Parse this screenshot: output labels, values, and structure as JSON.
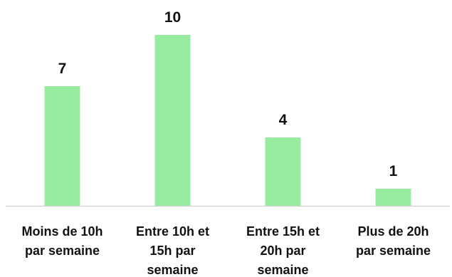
{
  "chart_data": {
    "type": "bar",
    "categories": [
      [
        "Moins de 10h",
        "par semaine"
      ],
      [
        "Entre 10h et",
        "15h par",
        "semaine"
      ],
      [
        "Entre 15h et",
        "20h par",
        "semaine"
      ],
      [
        "Plus de 20h",
        "par semaine"
      ]
    ],
    "values": [
      7,
      10,
      4,
      1
    ],
    "data_labels": [
      "7",
      "10",
      "4",
      "1"
    ],
    "ylim": [
      0,
      10
    ],
    "grid": false,
    "legend": "none",
    "bar_color": "#98ec9f",
    "axis_color": "#d0d0d0"
  }
}
